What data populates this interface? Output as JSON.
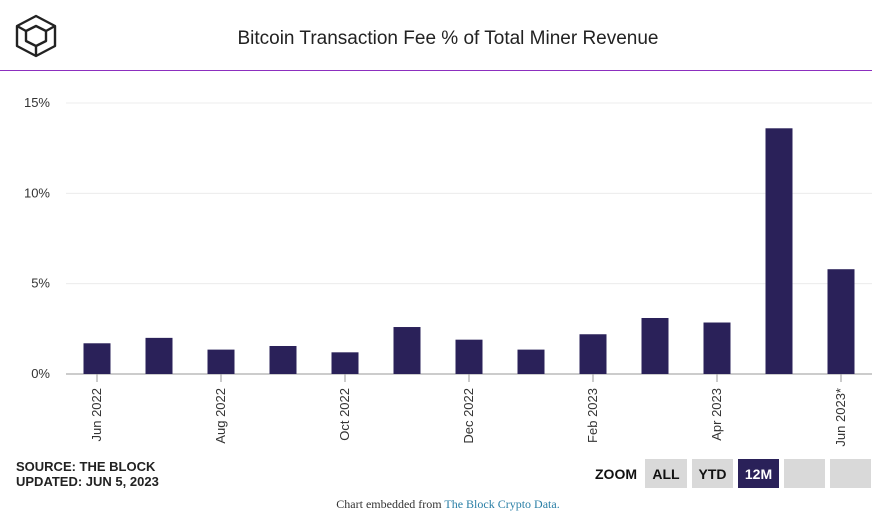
{
  "header": {
    "title": "Bitcoin Transaction Fee % of Total Miner Revenue"
  },
  "footer": {
    "source": "SOURCE: THE BLOCK",
    "updated": "UPDATED: JUN 5, 2023",
    "embed_prefix": "Chart embedded from ",
    "embed_link": "The Block Crypto Data."
  },
  "zoom": {
    "label": "ZOOM",
    "buttons": [
      "ALL",
      "YTD",
      "12M",
      "",
      ""
    ],
    "active": "12M"
  },
  "colors": {
    "bar": "#2a2159",
    "accent_line": "#8c2fbf",
    "link": "#2a7fa6"
  },
  "chart_data": {
    "type": "bar",
    "title": "Bitcoin Transaction Fee % of Total Miner Revenue",
    "xlabel": "",
    "ylabel": "",
    "categories": [
      "Jun 2022",
      "Jul 2022",
      "Aug 2022",
      "Sep 2022",
      "Oct 2022",
      "Nov 2022",
      "Dec 2022",
      "Jan 2023",
      "Feb 2023",
      "Mar 2023",
      "Apr 2023",
      "May 2023",
      "Jun 2023*"
    ],
    "values": [
      1.7,
      2.0,
      1.35,
      1.55,
      1.2,
      2.6,
      1.9,
      1.35,
      2.2,
      3.1,
      2.85,
      13.6,
      5.8
    ],
    "x_tick_labels": [
      "Jun 2022",
      "",
      "Aug 2022",
      "",
      "Oct 2022",
      "",
      "Dec 2022",
      "",
      "Feb 2023",
      "",
      "Apr 2023",
      "",
      "Jun 2023*"
    ],
    "y_ticks": [
      "0%",
      "5%",
      "10%",
      "15%"
    ],
    "ylim": [
      0,
      15
    ],
    "grid": true,
    "legend": "none"
  }
}
